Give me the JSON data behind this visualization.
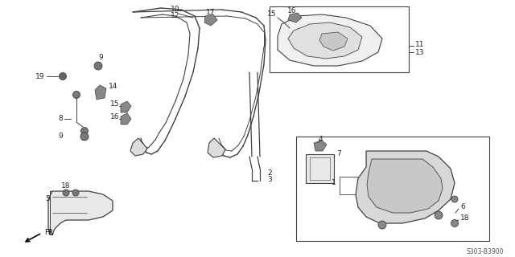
{
  "bg_color": "#ffffff",
  "diagram_code": "S303-B3900",
  "line_color": "#404040",
  "text_color": "#222222",
  "part_font_size": 6.5,
  "small_font_size": 5.5
}
